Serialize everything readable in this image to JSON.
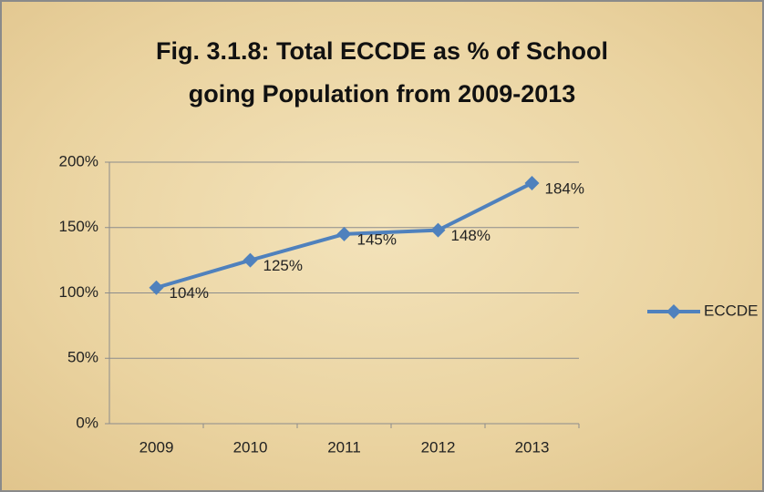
{
  "chart_data": {
    "type": "line",
    "title": [
      "Fig. 3.1.8: Total ECCDE as % of School",
      "going Population from 2009-2013"
    ],
    "categories": [
      "2009",
      "2010",
      "2011",
      "2012",
      "2013"
    ],
    "series": [
      {
        "name": "ECCDE",
        "color": "#4f81bd",
        "values": [
          104,
          125,
          145,
          148,
          184
        ],
        "value_labels": [
          "104%",
          "125%",
          "145%",
          "148%",
          "184%"
        ]
      }
    ],
    "ylim": [
      0,
      200
    ],
    "yticks": [
      {
        "value": 0,
        "label": "0%"
      },
      {
        "value": 50,
        "label": "50%"
      },
      {
        "value": 100,
        "label": "100%"
      },
      {
        "value": 150,
        "label": "150%"
      },
      {
        "value": 200,
        "label": "200%"
      }
    ],
    "grid": true,
    "legend": "right"
  }
}
